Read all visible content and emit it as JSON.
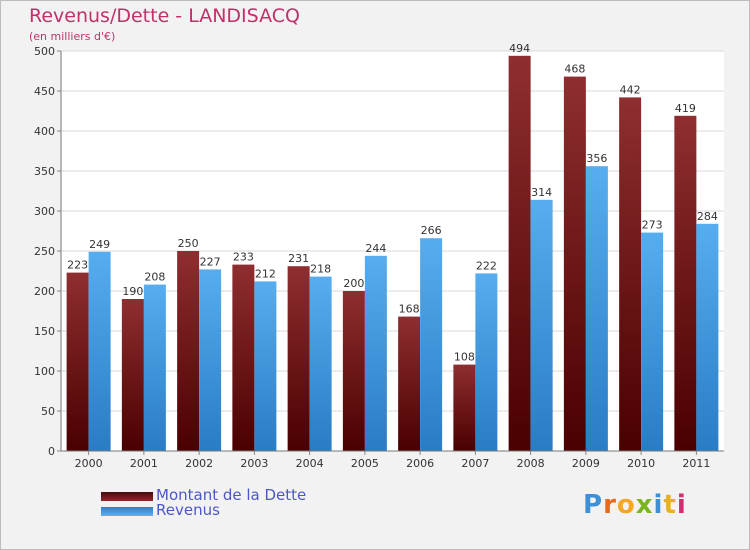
{
  "chart_data": {
    "type": "bar",
    "title": "Revenus/Dette - LANDISACQ",
    "subtitle": "(en milliers d'€)",
    "categories": [
      "2000",
      "2001",
      "2002",
      "2003",
      "2004",
      "2005",
      "2006",
      "2007",
      "2008",
      "2009",
      "2010",
      "2011"
    ],
    "series": [
      {
        "name": "Montant de la Dette",
        "values": [
          223,
          190,
          250,
          233,
          231,
          200,
          168,
          108,
          494,
          468,
          442,
          419
        ],
        "color": "#7a1a1f"
      },
      {
        "name": "Revenus",
        "values": [
          249,
          208,
          227,
          212,
          218,
          244,
          266,
          222,
          314,
          356,
          273,
          284
        ],
        "color": "#3d9ee8"
      }
    ],
    "ylim": [
      0,
      500
    ],
    "yticks": [
      0,
      50,
      100,
      150,
      200,
      250,
      300,
      350,
      400,
      450,
      500
    ],
    "grid": true,
    "legend_position": "bottom-left"
  },
  "logo": {
    "text": "Proxiti",
    "letter_colors": [
      "#3d8fd6",
      "#e86a1c",
      "#f5a623",
      "#7ab51d",
      "#3d8fd6",
      "#e8b21c",
      "#d62b6e"
    ]
  }
}
